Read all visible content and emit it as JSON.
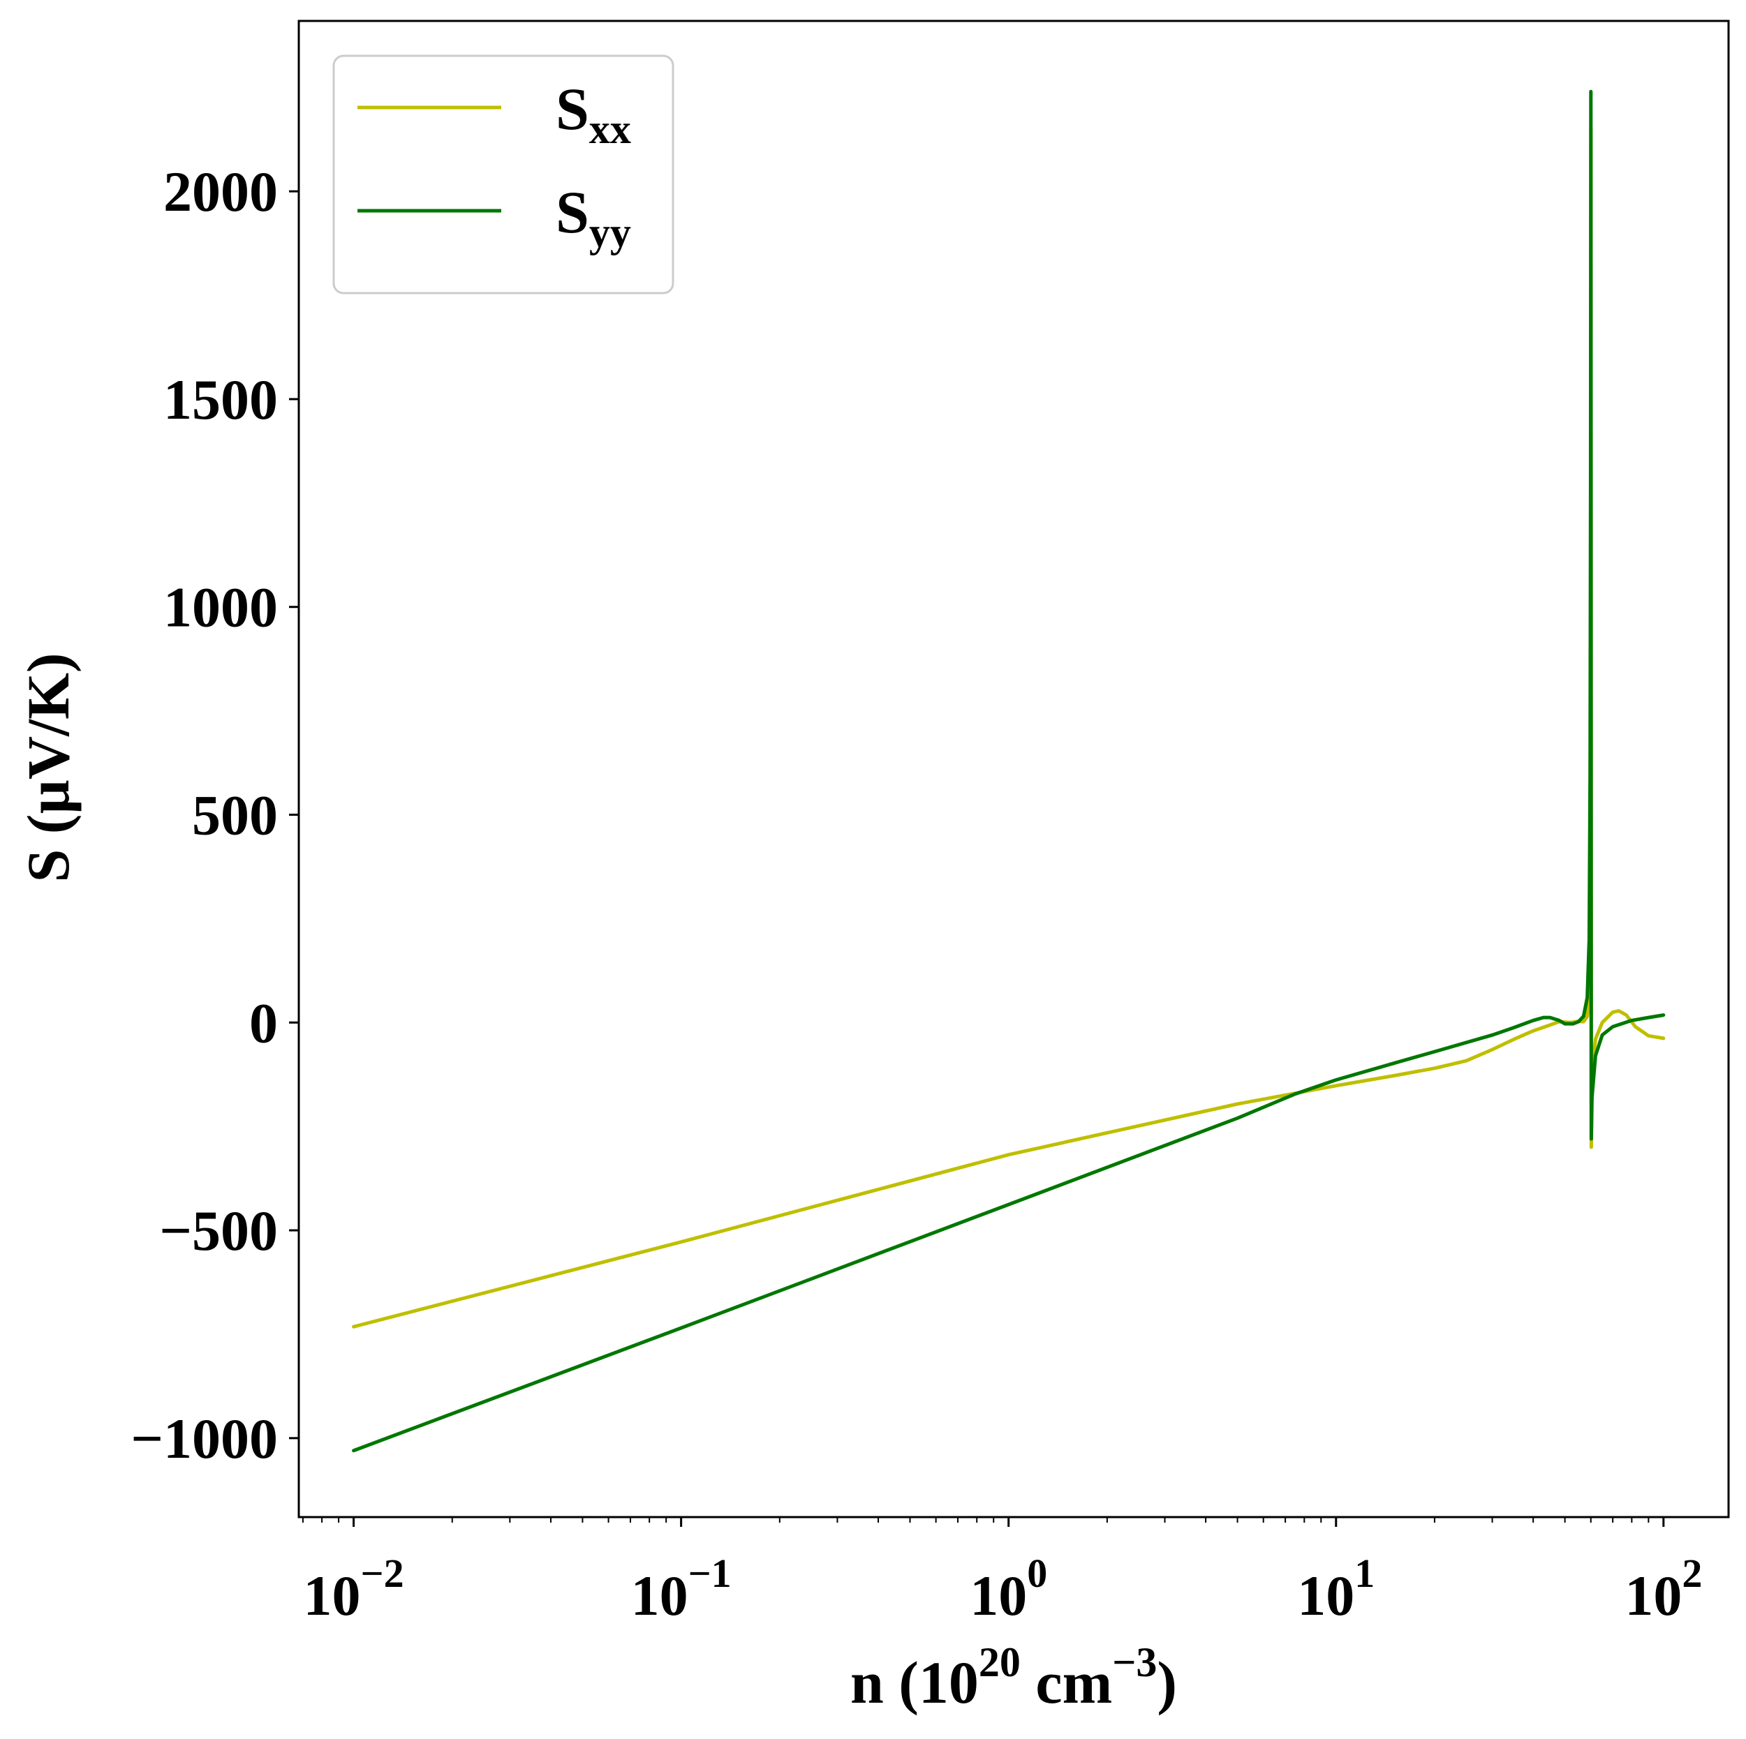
{
  "chart_data": {
    "type": "line",
    "xscale": "log",
    "xlim": [
      0.0068,
      158
    ],
    "ylim": [
      -1190,
      2410
    ],
    "x_ticks": [
      {
        "value": 0.01,
        "base": "10",
        "exp": "−2"
      },
      {
        "value": 0.1,
        "base": "10",
        "exp": "−1"
      },
      {
        "value": 1,
        "base": "10",
        "exp": "0"
      },
      {
        "value": 10,
        "base": "10",
        "exp": "1"
      },
      {
        "value": 100,
        "base": "10",
        "exp": "2"
      }
    ],
    "y_ticks": [
      "−1000",
      "−500",
      "0",
      "500",
      "1000",
      "1500",
      "2000"
    ],
    "y_tick_values": [
      -1000,
      -500,
      0,
      500,
      1000,
      1500,
      2000
    ],
    "xlabel": {
      "prefix": "n (10",
      "sup1": "20",
      "mid": " cm",
      "sup2": "−3",
      "suffix": ")"
    },
    "ylabel": "S (µV/K)",
    "legend_position": "top-left",
    "series": [
      {
        "name": "S",
        "name_sub": "xx",
        "color": "#bfbf00",
        "points": [
          [
            0.01,
            -732
          ],
          [
            0.1,
            -528
          ],
          [
            1,
            -318
          ],
          [
            5,
            -196
          ],
          [
            10,
            -152
          ],
          [
            15,
            -128
          ],
          [
            20,
            -110
          ],
          [
            25,
            -92
          ],
          [
            30,
            -65
          ],
          [
            35,
            -40
          ],
          [
            40,
            -20
          ],
          [
            45,
            -6
          ],
          [
            48,
            2
          ],
          [
            52,
            0
          ],
          [
            55,
            3
          ],
          [
            57,
            2
          ],
          [
            58.5,
            15
          ],
          [
            59.3,
            60
          ],
          [
            59.7,
            200
          ],
          [
            59.9,
            600
          ],
          [
            60.0,
            1500
          ],
          [
            60.05,
            2150
          ],
          [
            60.1,
            1200
          ],
          [
            60.15,
            -100
          ],
          [
            60.2,
            -300
          ],
          [
            60.5,
            -120
          ],
          [
            62,
            -40
          ],
          [
            65,
            0
          ],
          [
            70,
            25
          ],
          [
            73,
            28
          ],
          [
            77,
            18
          ],
          [
            82,
            -10
          ],
          [
            90,
            -32
          ],
          [
            100,
            -38
          ]
        ]
      },
      {
        "name": "S",
        "name_sub": "yy",
        "color": "#007700",
        "points": [
          [
            0.01,
            -1030
          ],
          [
            0.1,
            -735
          ],
          [
            1,
            -438
          ],
          [
            5,
            -230
          ],
          [
            7.5,
            -172
          ],
          [
            10,
            -138
          ],
          [
            15,
            -98
          ],
          [
            20,
            -70
          ],
          [
            30,
            -30
          ],
          [
            35,
            -12
          ],
          [
            40,
            5
          ],
          [
            43,
            12
          ],
          [
            45,
            12
          ],
          [
            48,
            5
          ],
          [
            50,
            -3
          ],
          [
            53,
            -3
          ],
          [
            55,
            2
          ],
          [
            57,
            15
          ],
          [
            58.5,
            60
          ],
          [
            59.3,
            200
          ],
          [
            59.7,
            600
          ],
          [
            59.9,
            1300
          ],
          [
            60.0,
            2240
          ],
          [
            60.08,
            1500
          ],
          [
            60.15,
            -50
          ],
          [
            60.2,
            -280
          ],
          [
            60.5,
            -180
          ],
          [
            62,
            -80
          ],
          [
            65,
            -30
          ],
          [
            70,
            -10
          ],
          [
            80,
            5
          ],
          [
            90,
            12
          ],
          [
            100,
            18
          ]
        ]
      }
    ]
  }
}
